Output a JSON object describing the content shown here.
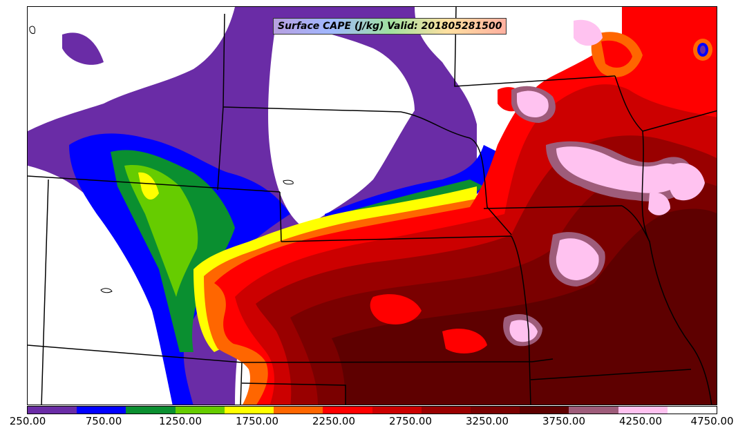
{
  "map": {
    "title": "Surface CAPE (J/kg) Valid: 201805281500",
    "variable": "Surface CAPE",
    "units": "J/kg",
    "valid_time": "201805281500",
    "background_color": "#ffffff",
    "border_color": "#000000"
  },
  "colorbar": {
    "min": 250,
    "max": 4750,
    "interval": 250,
    "colors": [
      "#6a2ca6",
      "#6a2ca6",
      "#0000ff",
      "#0000ff",
      "#0a8f30",
      "#0a8f30",
      "#66cc00",
      "#66cc00",
      "#ffff00",
      "#ffff00",
      "#ff6600",
      "#ff6600",
      "#ff0000",
      "#ff0000",
      "#cc0000",
      "#cc0000",
      "#990000",
      "#990000",
      "#7a0000",
      "#7a0000",
      "#5e0000",
      "#5e0000",
      "#9e5c7a",
      "#9e5c7a",
      "#ffc2f0",
      "#ffc2f0",
      "#ffffff",
      "#ffffff"
    ],
    "tick_labels": [
      "250.00",
      "750.00",
      "1250.00",
      "1750.00",
      "2250.00",
      "2750.00",
      "3250.00",
      "3750.00",
      "4250.00",
      "4750.00"
    ]
  }
}
